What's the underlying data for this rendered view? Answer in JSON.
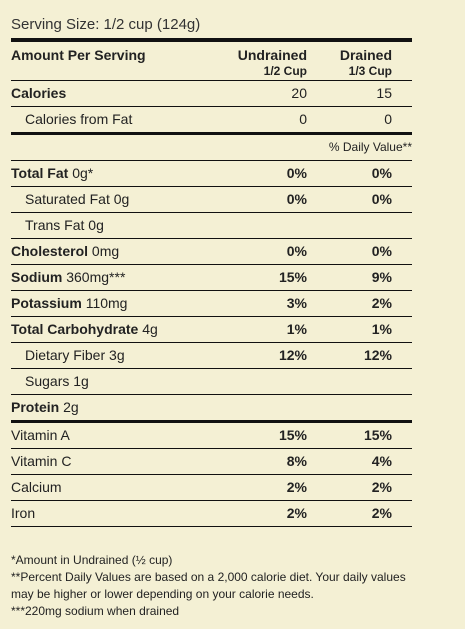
{
  "serving_size": "Serving Size: 1/2 cup (124g)",
  "header": {
    "amount_label": "Amount Per Serving",
    "col1_title": "Undrained",
    "col1_sub": "1/2 Cup",
    "col2_title": "Drained",
    "col2_sub": "1/3 Cup"
  },
  "calories": {
    "label": "Calories",
    "v1": "20",
    "v2": "15"
  },
  "calories_fat": {
    "label": "Calories from Fat",
    "v1": "0",
    "v2": "0"
  },
  "dv_heading": "% Daily Value**",
  "nutrients": [
    {
      "name": "Total Fat",
      "amount": "0g*",
      "v1": "0%",
      "v2": "0%"
    },
    {
      "name": "Saturated Fat",
      "amount": "0g",
      "v1": "0%",
      "v2": "0%"
    },
    {
      "name": "Trans Fat",
      "amount": "0g",
      "v1": "",
      "v2": ""
    },
    {
      "name": "Cholesterol",
      "amount": "0mg",
      "v1": "0%",
      "v2": "0%"
    },
    {
      "name": "Sodium",
      "amount": "360mg***",
      "v1": "15%",
      "v2": "9%"
    },
    {
      "name": "Potassium",
      "amount": "110mg",
      "v1": "3%",
      "v2": "2%"
    },
    {
      "name": "Total Carbohydrate",
      "amount": "4g",
      "v1": "1%",
      "v2": "1%"
    },
    {
      "name": "Dietary Fiber",
      "amount": "3g",
      "v1": "12%",
      "v2": "12%"
    },
    {
      "name": "Sugars",
      "amount": "1g",
      "v1": "",
      "v2": ""
    },
    {
      "name": "Protein",
      "amount": "2g",
      "v1": "",
      "v2": ""
    }
  ],
  "vitamins": [
    {
      "name": "Vitamin A",
      "v1": "15%",
      "v2": "15%"
    },
    {
      "name": "Vitamin C",
      "v1": "8%",
      "v2": "4%"
    },
    {
      "name": "Calcium",
      "v1": "2%",
      "v2": "2%"
    },
    {
      "name": "Iron",
      "v1": "2%",
      "v2": "2%"
    }
  ],
  "footnotes": {
    "f1": "*Amount in Undrained (½ cup)",
    "f2": "**Percent Daily Values are based on a 2,000 calorie diet. Your daily values may be higher or lower depending on your calorie needs.",
    "f3": "***220mg sodium when drained"
  }
}
